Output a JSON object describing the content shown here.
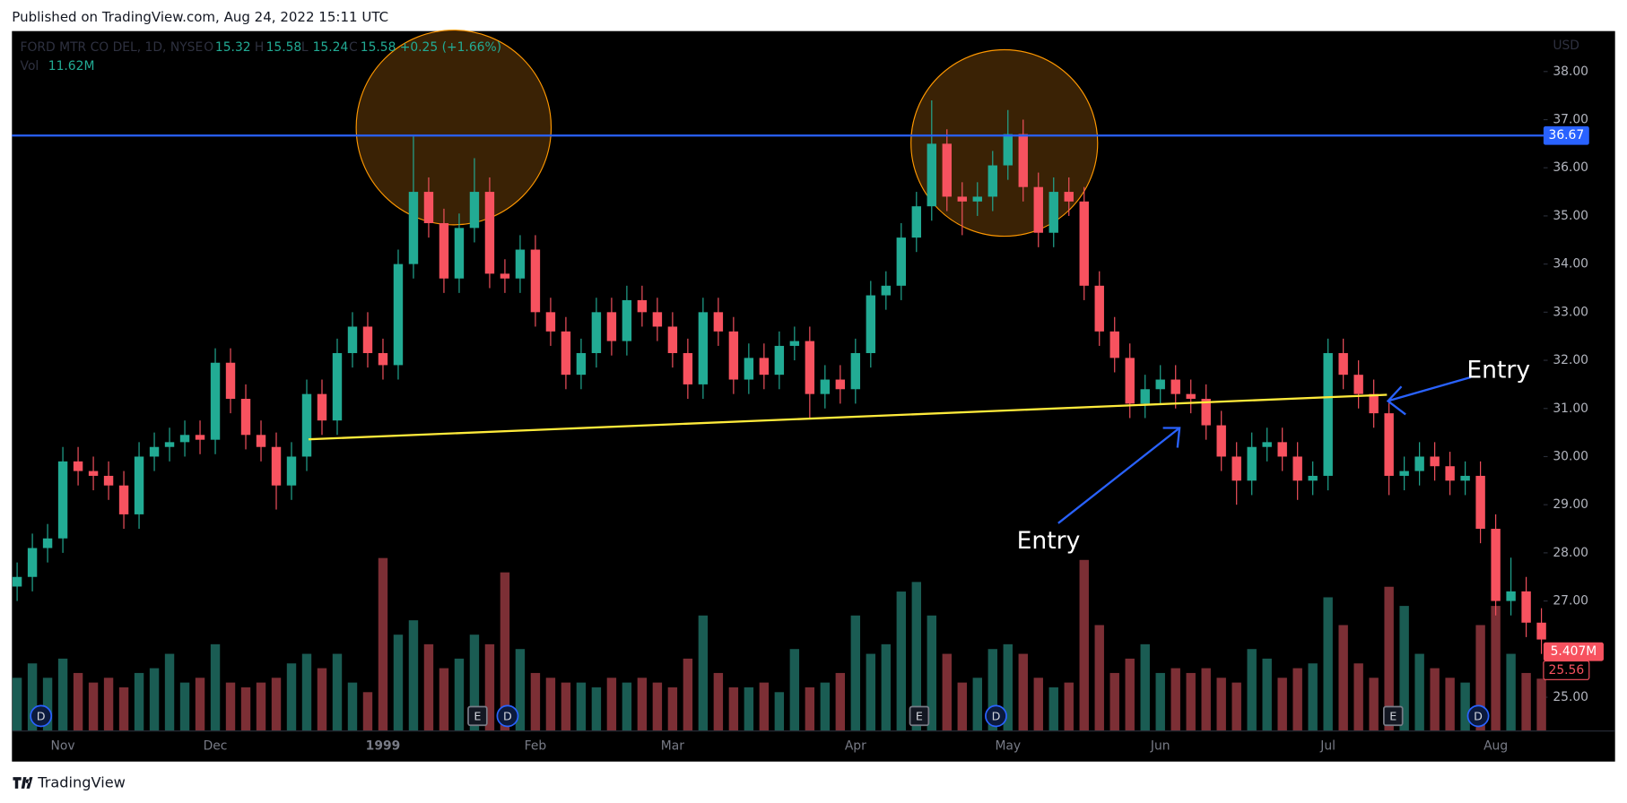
{
  "header": "Published on TradingView.com, Aug 24, 2022 15:11 UTC",
  "footer": "TradingView",
  "chart_data": {
    "type": "candlestick",
    "legend": {
      "symbol": "FORD MTR CO DEL, 1D, NYSE",
      "o_label": "O",
      "open": 15.32,
      "h_label": "H",
      "high": 15.58,
      "l_label": "L",
      "low": 15.24,
      "c_label": "C",
      "close": 15.58,
      "change": "+0.25 (+1.66%)",
      "vol_label": "Vol",
      "volume": "11.62M"
    },
    "currency": "USD",
    "categories": [
      null,
      null,
      null,
      "Nov",
      null,
      null,
      null,
      null,
      null,
      null,
      null,
      null,
      null,
      "Dec",
      null,
      null,
      null,
      null,
      null,
      null,
      null,
      null,
      null,
      null,
      "1999",
      null,
      null,
      null,
      null,
      null,
      null,
      null,
      null,
      null,
      "Feb",
      null,
      null,
      null,
      null,
      null,
      null,
      null,
      null,
      "Mar",
      null,
      null,
      null,
      null,
      null,
      null,
      null,
      null,
      null,
      null,
      null,
      "Apr",
      null,
      null,
      null,
      null,
      null,
      null,
      null,
      null,
      null,
      "May",
      null,
      null,
      null,
      null,
      null,
      null,
      null,
      null,
      null,
      "Jun",
      null,
      null,
      null,
      null,
      null,
      null,
      null,
      null,
      null,
      null,
      "Jul",
      null,
      null,
      null,
      null,
      null,
      null,
      null,
      null,
      null,
      null,
      "Aug",
      null,
      null,
      null
    ],
    "open": [
      27.3,
      27.5,
      28.1,
      28.3,
      29.9,
      29.7,
      29.6,
      29.4,
      28.8,
      30.0,
      30.2,
      30.3,
      30.45,
      30.35,
      31.95,
      31.2,
      30.45,
      30.2,
      29.4,
      30.0,
      31.3,
      30.75,
      32.15,
      32.7,
      32.15,
      31.9,
      34.0,
      35.5,
      34.85,
      33.7,
      34.75,
      35.5,
      33.8,
      33.7,
      34.3,
      33.0,
      32.6,
      31.7,
      32.15,
      33.0,
      32.4,
      33.25,
      33.0,
      32.7,
      32.15,
      31.5,
      33.0,
      32.6,
      31.6,
      32.05,
      31.7,
      32.3,
      32.4,
      31.3,
      31.6,
      31.4,
      32.15,
      33.35,
      33.55,
      34.55,
      35.2,
      36.5,
      35.4,
      35.3,
      35.4,
      36.05,
      36.7,
      35.6,
      34.65,
      35.5,
      35.3,
      33.55,
      32.6,
      32.05,
      31.1,
      31.4,
      31.6,
      31.3,
      31.2,
      30.65,
      30.0,
      29.5,
      30.2,
      30.3,
      30.0,
      29.5,
      29.6,
      32.15,
      31.7,
      31.3,
      30.9,
      29.6,
      29.7,
      30.0,
      29.8,
      29.5,
      29.6,
      28.5,
      27.0,
      27.2,
      26.55
    ],
    "high": [
      27.8,
      28.4,
      28.6,
      30.2,
      30.2,
      30.0,
      29.9,
      29.7,
      30.3,
      30.5,
      30.6,
      30.75,
      30.75,
      32.25,
      32.25,
      31.5,
      30.75,
      30.5,
      30.3,
      31.6,
      31.6,
      32.45,
      33.0,
      33.0,
      32.45,
      34.3,
      36.65,
      35.8,
      35.15,
      35.05,
      36.2,
      35.8,
      34.1,
      34.6,
      34.6,
      33.3,
      32.9,
      32.45,
      33.3,
      33.3,
      33.55,
      33.55,
      33.3,
      33.0,
      32.45,
      33.3,
      33.3,
      32.9,
      32.35,
      32.35,
      32.6,
      32.7,
      32.7,
      31.9,
      31.9,
      32.45,
      33.65,
      33.85,
      34.85,
      35.5,
      37.4,
      36.8,
      35.7,
      35.7,
      36.35,
      37.2,
      37.0,
      35.9,
      35.8,
      35.8,
      35.6,
      33.85,
      32.9,
      32.35,
      31.7,
      31.9,
      31.9,
      31.6,
      31.5,
      30.95,
      30.3,
      30.5,
      30.6,
      30.6,
      30.3,
      29.9,
      32.45,
      32.45,
      32.0,
      31.6,
      31.2,
      30.0,
      30.3,
      30.3,
      30.1,
      29.9,
      29.9,
      28.8,
      27.9,
      27.5,
      26.85
    ],
    "low": [
      27.0,
      27.2,
      27.8,
      28.0,
      29.4,
      29.3,
      29.1,
      28.5,
      28.5,
      29.7,
      29.9,
      30.0,
      30.05,
      30.05,
      30.9,
      30.15,
      29.9,
      28.9,
      29.1,
      29.7,
      30.45,
      30.45,
      31.85,
      31.85,
      31.6,
      31.6,
      33.7,
      34.55,
      33.4,
      33.4,
      34.45,
      33.5,
      33.4,
      33.4,
      32.7,
      32.3,
      31.4,
      31.4,
      31.85,
      32.1,
      32.1,
      32.7,
      32.4,
      31.85,
      31.2,
      31.2,
      32.3,
      31.3,
      31.3,
      31.4,
      31.4,
      32.0,
      30.8,
      31.0,
      31.1,
      31.1,
      31.85,
      33.05,
      33.25,
      34.25,
      34.9,
      35.1,
      34.6,
      35.0,
      35.1,
      35.75,
      35.3,
      34.35,
      34.35,
      35.0,
      33.25,
      32.3,
      31.75,
      30.8,
      30.8,
      31.1,
      31.0,
      30.9,
      30.35,
      29.7,
      29.0,
      29.2,
      29.9,
      29.7,
      29.1,
      29.2,
      29.3,
      31.4,
      31.0,
      30.6,
      29.2,
      29.3,
      29.4,
      29.5,
      29.2,
      29.2,
      28.2,
      26.7,
      26.7,
      26.25,
      25.9
    ],
    "close": [
      27.5,
      28.1,
      28.3,
      29.9,
      29.7,
      29.6,
      29.4,
      28.8,
      30.0,
      30.2,
      30.3,
      30.45,
      30.35,
      31.95,
      31.2,
      30.45,
      30.2,
      29.4,
      30.0,
      31.3,
      30.75,
      32.15,
      32.7,
      32.15,
      31.9,
      34.0,
      35.5,
      34.85,
      33.7,
      34.75,
      35.5,
      33.8,
      33.7,
      34.3,
      33.0,
      32.6,
      31.7,
      32.15,
      33.0,
      32.4,
      33.25,
      33.0,
      32.7,
      32.15,
      31.5,
      33.0,
      32.6,
      31.6,
      32.05,
      31.7,
      32.3,
      32.4,
      31.3,
      31.6,
      31.4,
      32.15,
      33.35,
      33.55,
      34.55,
      35.2,
      36.5,
      35.4,
      35.3,
      35.4,
      36.05,
      36.7,
      35.6,
      34.65,
      35.5,
      35.3,
      33.55,
      32.6,
      32.05,
      31.1,
      31.4,
      31.6,
      31.3,
      31.2,
      30.65,
      30.0,
      29.5,
      30.2,
      30.3,
      30.0,
      29.5,
      29.6,
      32.15,
      31.7,
      31.3,
      30.9,
      29.6,
      29.7,
      30.0,
      29.8,
      29.5,
      29.6,
      28.5,
      27.0,
      27.2,
      26.55,
      26.2
    ],
    "volume": {
      "axis": "y2",
      "values": [
        5.5,
        7,
        5.5,
        7.5,
        6,
        5,
        5.5,
        4.5,
        6,
        6.5,
        8,
        5,
        5.5,
        9,
        5,
        4.5,
        5,
        5.5,
        7,
        8,
        6.5,
        8,
        5,
        4,
        18,
        10,
        11.5,
        9,
        6.5,
        7.5,
        10,
        9,
        16.5,
        8.5,
        6,
        5.5,
        5,
        5,
        4.5,
        5.5,
        5,
        5.5,
        5,
        4.5,
        7.5,
        12,
        6,
        4.5,
        4.5,
        5,
        4,
        8.5,
        4.5,
        5,
        6,
        12,
        8,
        9,
        14.5,
        15.5,
        12,
        8,
        5,
        5.5,
        8.5,
        9,
        8,
        5.5,
        4.5,
        5,
        17.8,
        11,
        6,
        7.5,
        9,
        6,
        6.5,
        6,
        6.5,
        5.5,
        5,
        8.5,
        7.5,
        5.5,
        6.5,
        7,
        13.9,
        11,
        7,
        5.5,
        15,
        13,
        8,
        6.5,
        5.5,
        5,
        11,
        13,
        8,
        6,
        5.407
      ],
      "last_label": "5.407M"
    },
    "up_color": "#22ab94",
    "down_color": "#f7525f",
    "up_volume_color": "#1a5c53",
    "down_volume_color": "#7c2f35",
    "ylim": [
      24.31,
      38.84
    ],
    "yticks": [
      {
        "value": 25,
        "label": "25.00"
      },
      {
        "value": 26,
        "label": "26.00"
      },
      {
        "value": 27,
        "label": "27.00"
      },
      {
        "value": 28,
        "label": "28.00"
      },
      {
        "value": 29,
        "label": "29.00"
      },
      {
        "value": 30,
        "label": "30.00"
      },
      {
        "value": 31,
        "label": "31.00"
      },
      {
        "value": 32,
        "label": "32.00"
      },
      {
        "value": 33,
        "label": "33.00"
      },
      {
        "value": 34,
        "label": "34.00"
      },
      {
        "value": 35,
        "label": "35.00"
      },
      {
        "value": 36,
        "label": "36.00"
      },
      {
        "value": 37,
        "label": "37.00"
      },
      {
        "value": 38,
        "label": "38.00"
      }
    ],
    "y2lim": [
      0,
      73
    ],
    "grid": false,
    "hline": {
      "value": 36.67,
      "color": "#2962ff"
    },
    "price_label": 25.56,
    "events": [
      "D",
      "E",
      "D",
      "E",
      "D",
      "E",
      "D"
    ],
    "annotations": [
      "Entry",
      "Entry"
    ]
  }
}
